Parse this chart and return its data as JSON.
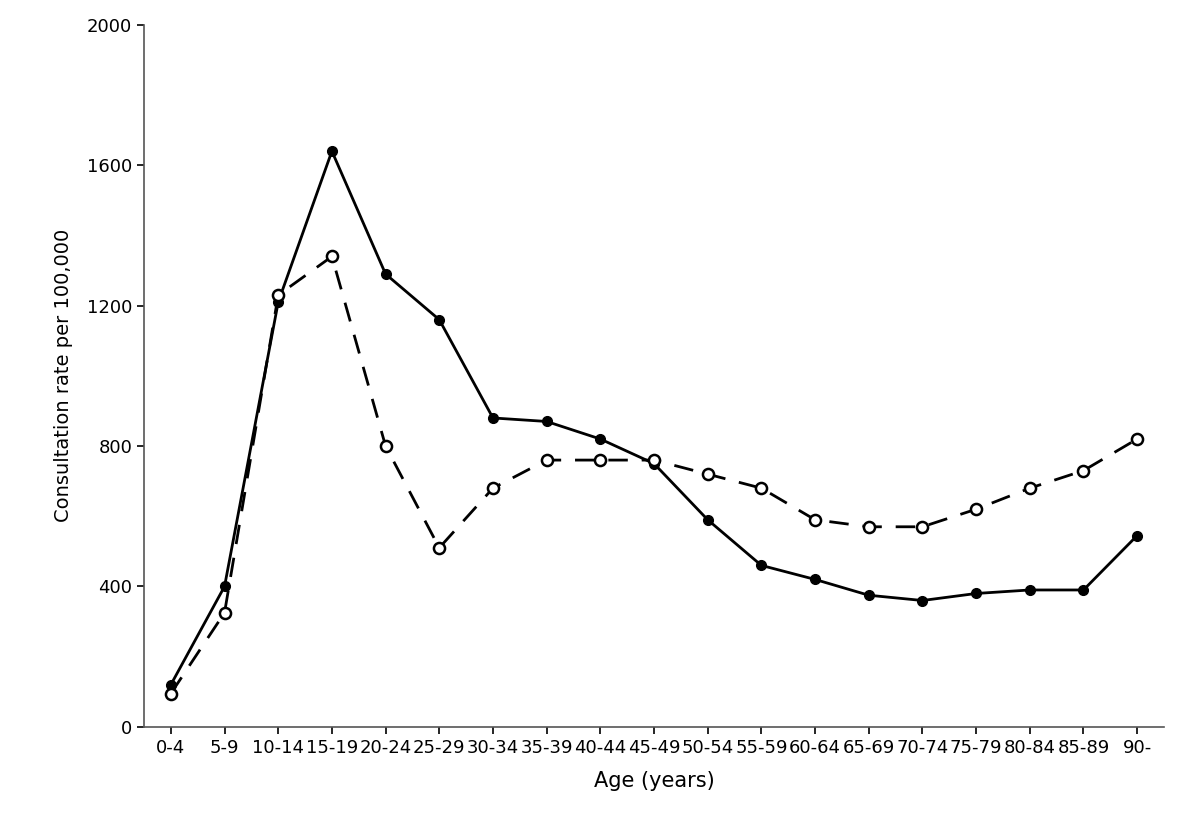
{
  "age_labels": [
    "0-4",
    "5-9",
    "10-14",
    "15-19",
    "20-24",
    "25-29",
    "30-34",
    "35-39",
    "40-44",
    "45-49",
    "50-54",
    "55-59",
    "60-64",
    "65-69",
    "70-74",
    "75-79",
    "80-84",
    "85-89",
    "90-"
  ],
  "solid_line": [
    120,
    400,
    1210,
    1640,
    1290,
    1160,
    880,
    870,
    820,
    750,
    590,
    460,
    420,
    375,
    360,
    380,
    390,
    390,
    545
  ],
  "dashed_line": [
    95,
    325,
    1230,
    1340,
    800,
    510,
    680,
    760,
    760,
    760,
    720,
    680,
    590,
    570,
    570,
    620,
    680,
    730,
    820
  ],
  "xlabel": "Age (years)",
  "ylabel": "Consultation rate per 100,000",
  "ylim": [
    0,
    2000
  ],
  "yticks": [
    0,
    400,
    800,
    1200,
    1600,
    2000
  ],
  "background_color": "#ffffff",
  "line_color": "#000000",
  "figsize": [
    12.0,
    8.26
  ],
  "dpi": 100
}
